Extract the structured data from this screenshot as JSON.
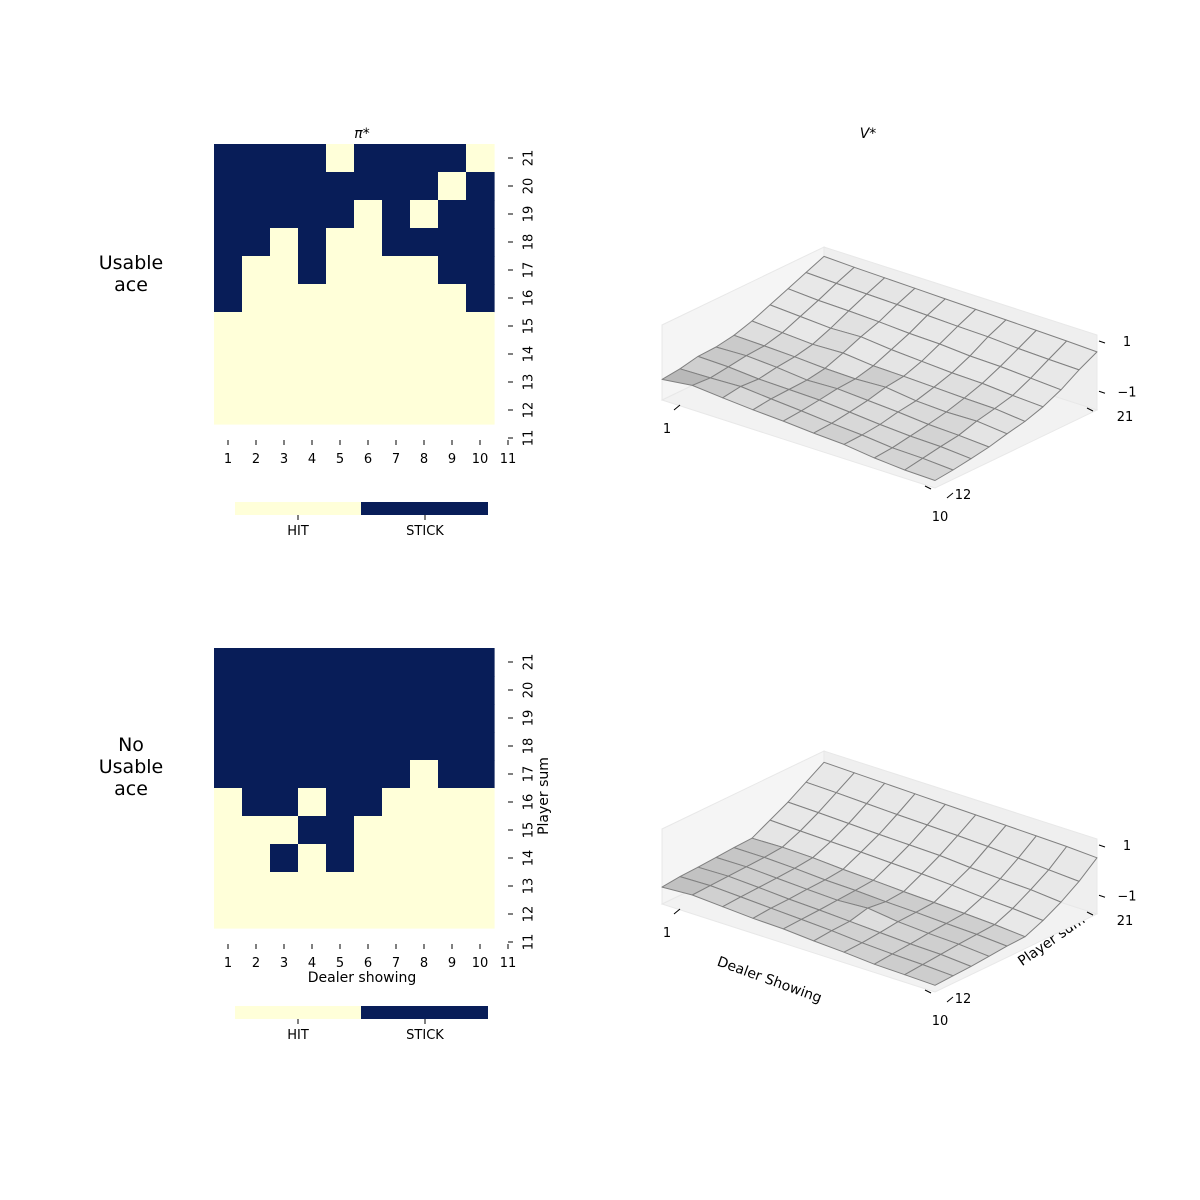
{
  "colors": {
    "hit": "#ffffd9",
    "stick": "#081d58",
    "surface_light": "#e6e6e6",
    "surface_dark": "#9a9a9a",
    "surface_edge": "#808080",
    "pane": "#f2f2f2"
  },
  "chart_data": [
    {
      "type": "heatmap",
      "row_label": "Usable ace",
      "title": "π*",
      "xlabel": "",
      "ylabel": "",
      "x_ticks": [
        1,
        2,
        3,
        4,
        5,
        6,
        7,
        8,
        9,
        10,
        11
      ],
      "y_ticks": [
        11,
        12,
        13,
        14,
        15,
        16,
        17,
        18,
        19,
        20,
        21
      ],
      "legend": {
        "labels": [
          "HIT",
          "STICK"
        ],
        "placement": "bottom"
      },
      "rows": [
        {
          "player_sum": 21,
          "actions": [
            1,
            1,
            1,
            1,
            0,
            1,
            1,
            1,
            1,
            0
          ]
        },
        {
          "player_sum": 20,
          "actions": [
            1,
            1,
            1,
            1,
            1,
            1,
            1,
            1,
            0,
            1
          ]
        },
        {
          "player_sum": 19,
          "actions": [
            1,
            1,
            1,
            1,
            1,
            0,
            1,
            0,
            1,
            1
          ]
        },
        {
          "player_sum": 18,
          "actions": [
            1,
            1,
            0,
            1,
            0,
            0,
            1,
            1,
            1,
            1
          ]
        },
        {
          "player_sum": 17,
          "actions": [
            1,
            0,
            0,
            1,
            0,
            0,
            0,
            0,
            1,
            1
          ]
        },
        {
          "player_sum": 16,
          "actions": [
            1,
            0,
            0,
            0,
            0,
            0,
            0,
            0,
            0,
            1
          ]
        },
        {
          "player_sum": 15,
          "actions": [
            0,
            0,
            0,
            0,
            0,
            0,
            0,
            0,
            0,
            0
          ]
        },
        {
          "player_sum": 14,
          "actions": [
            0,
            0,
            0,
            0,
            0,
            0,
            0,
            0,
            0,
            0
          ]
        },
        {
          "player_sum": 13,
          "actions": [
            0,
            0,
            0,
            0,
            0,
            0,
            0,
            0,
            0,
            0
          ]
        },
        {
          "player_sum": 12,
          "actions": [
            0,
            0,
            0,
            0,
            0,
            0,
            0,
            0,
            0,
            0
          ]
        }
      ]
    },
    {
      "type": "surface",
      "row_label": "Usable ace",
      "title": "V*",
      "xlabel": "",
      "ylabel": "",
      "x_ticks": [
        "1",
        "10"
      ],
      "y_ticks": [
        "12",
        "21"
      ],
      "z_ticks": [
        "−1",
        "1"
      ],
      "zlim": [
        -1,
        1
      ],
      "z": [
        [
          -0.45,
          -0.35,
          -0.42,
          -0.48,
          -0.52,
          -0.58,
          -0.62,
          -0.72,
          -0.78,
          -0.8
        ],
        [
          -0.4,
          -0.38,
          -0.35,
          -0.42,
          -0.48,
          -0.55,
          -0.6,
          -0.68,
          -0.7,
          -0.75
        ],
        [
          -0.3,
          -0.32,
          -0.38,
          -0.4,
          -0.42,
          -0.48,
          -0.55,
          -0.6,
          -0.62,
          -0.68
        ],
        [
          -0.28,
          -0.25,
          -0.3,
          -0.38,
          -0.35,
          -0.4,
          -0.45,
          -0.52,
          -0.55,
          -0.6
        ],
        [
          -0.2,
          -0.22,
          -0.25,
          -0.3,
          -0.32,
          -0.28,
          -0.38,
          -0.42,
          -0.4,
          -0.48
        ],
        [
          -0.05,
          -0.1,
          -0.15,
          -0.12,
          -0.2,
          -0.22,
          -0.25,
          -0.28,
          -0.3,
          -0.38
        ],
        [
          0.15,
          0.1,
          0.05,
          0.08,
          0.0,
          -0.05,
          -0.1,
          -0.12,
          -0.18,
          -0.22
        ],
        [
          0.35,
          0.3,
          0.28,
          0.25,
          0.2,
          0.18,
          0.12,
          0.1,
          0.05,
          0.0
        ],
        [
          0.55,
          0.52,
          0.5,
          0.48,
          0.45,
          0.42,
          0.4,
          0.35,
          0.32,
          0.3
        ],
        [
          0.75,
          0.72,
          0.7,
          0.68,
          0.66,
          0.64,
          0.62,
          0.6,
          0.58,
          0.55
        ]
      ]
    },
    {
      "type": "heatmap",
      "row_label": "No Usable ace",
      "title": "",
      "xlabel": "Dealer showing",
      "ylabel": "Player sum",
      "x_ticks": [
        1,
        2,
        3,
        4,
        5,
        6,
        7,
        8,
        9,
        10,
        11
      ],
      "y_ticks": [
        11,
        12,
        13,
        14,
        15,
        16,
        17,
        18,
        19,
        20,
        21
      ],
      "legend": {
        "labels": [
          "HIT",
          "STICK"
        ],
        "placement": "bottom"
      },
      "rows": [
        {
          "player_sum": 21,
          "actions": [
            1,
            1,
            1,
            1,
            1,
            1,
            1,
            1,
            1,
            1
          ]
        },
        {
          "player_sum": 20,
          "actions": [
            1,
            1,
            1,
            1,
            1,
            1,
            1,
            1,
            1,
            1
          ]
        },
        {
          "player_sum": 19,
          "actions": [
            1,
            1,
            1,
            1,
            1,
            1,
            1,
            1,
            1,
            1
          ]
        },
        {
          "player_sum": 18,
          "actions": [
            1,
            1,
            1,
            1,
            1,
            1,
            1,
            1,
            1,
            1
          ]
        },
        {
          "player_sum": 17,
          "actions": [
            1,
            1,
            1,
            1,
            1,
            1,
            1,
            0,
            1,
            1
          ]
        },
        {
          "player_sum": 16,
          "actions": [
            0,
            1,
            1,
            0,
            1,
            1,
            0,
            0,
            0,
            0
          ]
        },
        {
          "player_sum": 15,
          "actions": [
            0,
            0,
            0,
            1,
            1,
            0,
            0,
            0,
            0,
            0
          ]
        },
        {
          "player_sum": 14,
          "actions": [
            0,
            0,
            1,
            0,
            1,
            0,
            0,
            0,
            0,
            0
          ]
        },
        {
          "player_sum": 13,
          "actions": [
            0,
            0,
            0,
            0,
            0,
            0,
            0,
            0,
            0,
            0
          ]
        },
        {
          "player_sum": 12,
          "actions": [
            0,
            0,
            0,
            0,
            0,
            0,
            0,
            0,
            0,
            0
          ]
        }
      ]
    },
    {
      "type": "surface",
      "row_label": "No Usable ace",
      "title": "",
      "xlabel": "Dealer Showing",
      "ylabel": "Player sum",
      "x_ticks": [
        "1",
        "10"
      ],
      "y_ticks": [
        "12",
        "21"
      ],
      "z_ticks": [
        "−1",
        "1"
      ],
      "zlim": [
        -1,
        1
      ],
      "z": [
        [
          -0.55,
          -0.5,
          -0.55,
          -0.6,
          -0.62,
          -0.68,
          -0.72,
          -0.78,
          -0.8,
          -0.82
        ],
        [
          -0.5,
          -0.48,
          -0.52,
          -0.56,
          -0.6,
          -0.64,
          -0.7,
          -0.74,
          -0.76,
          -0.8
        ],
        [
          -0.48,
          -0.46,
          -0.5,
          -0.55,
          -0.58,
          -0.62,
          -0.66,
          -0.7,
          -0.72,
          -0.78
        ],
        [
          -0.45,
          -0.44,
          -0.48,
          -0.52,
          -0.55,
          -0.5,
          -0.6,
          -0.65,
          -0.68,
          -0.74
        ],
        [
          -0.42,
          -0.42,
          -0.45,
          -0.5,
          -0.52,
          -0.56,
          -0.58,
          -0.62,
          -0.65,
          -0.7
        ],
        [
          -0.4,
          -0.38,
          -0.4,
          -0.45,
          -0.48,
          -0.52,
          -0.55,
          -0.58,
          -0.62,
          -0.68
        ],
        [
          -0.15,
          -0.18,
          -0.2,
          -0.22,
          -0.25,
          -0.28,
          -0.32,
          -0.38,
          -0.42,
          -0.48
        ],
        [
          0.1,
          0.08,
          0.05,
          0.02,
          0.0,
          -0.02,
          -0.08,
          -0.12,
          -0.15,
          -0.22
        ],
        [
          0.4,
          0.38,
          0.35,
          0.32,
          0.3,
          0.28,
          0.25,
          0.2,
          0.15,
          0.1
        ],
        [
          0.7,
          0.68,
          0.66,
          0.64,
          0.62,
          0.6,
          0.58,
          0.56,
          0.54,
          0.5
        ]
      ]
    }
  ]
}
